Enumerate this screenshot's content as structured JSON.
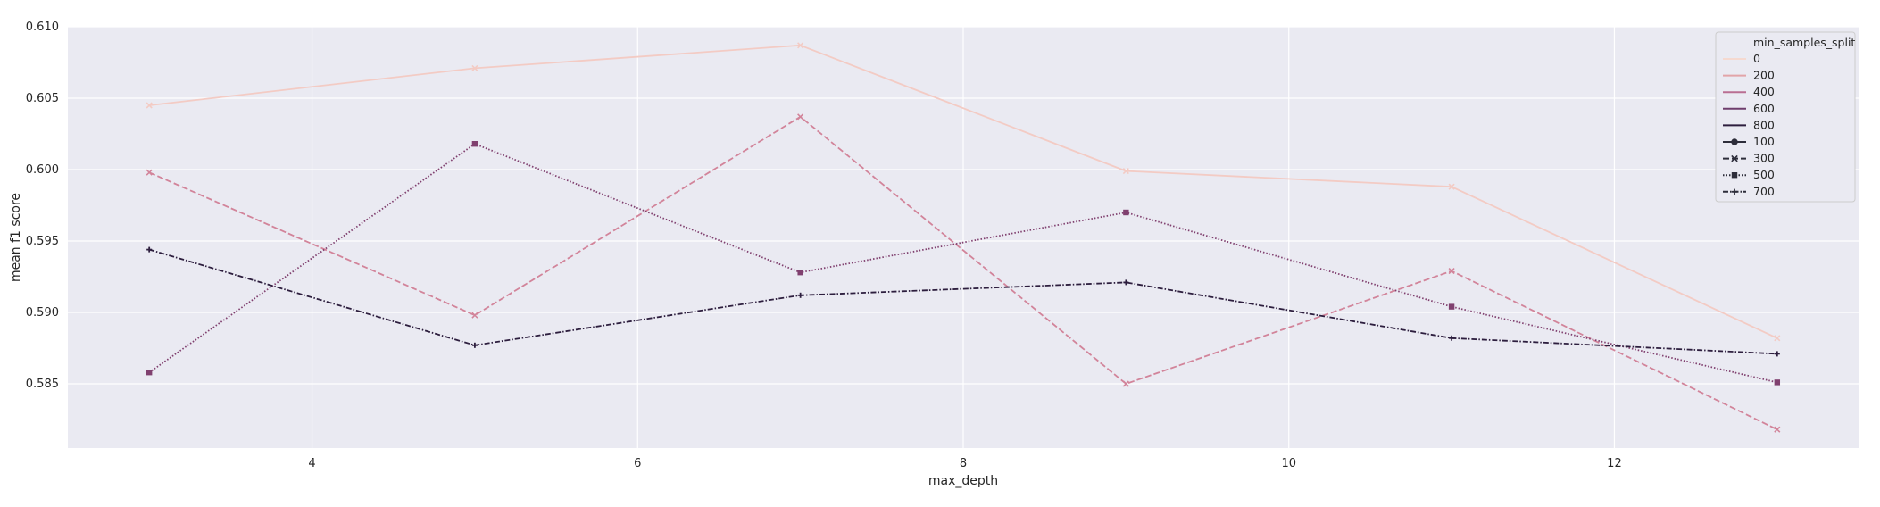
{
  "chart_data": {
    "type": "line",
    "xlabel": "max_depth",
    "ylabel": "mean f1 score",
    "xlim": [
      2.5,
      13.5
    ],
    "ylim": [
      0.5805,
      0.61
    ],
    "xticks": [
      4,
      6,
      8,
      10,
      12
    ],
    "yticks": [
      0.585,
      0.59,
      0.595,
      0.6,
      0.605,
      0.61
    ],
    "ytick_labels": [
      "0.585",
      "0.590",
      "0.595",
      "0.600",
      "0.605",
      "0.610"
    ],
    "grid": true,
    "x": [
      3,
      5,
      7,
      9,
      11,
      13
    ],
    "series": [
      {
        "name": "100",
        "hue": "200",
        "color": "#f3cbc4",
        "dash": "solid",
        "marker": "x",
        "values": [
          0.6045,
          0.6071,
          0.6087,
          0.5999,
          0.5988,
          0.5882
        ]
      },
      {
        "name": "300",
        "hue": "400",
        "color": "#d2849a",
        "dash": "dashed",
        "marker": "x",
        "values": [
          0.5998,
          0.5898,
          0.6037,
          0.585,
          0.5929,
          0.5818
        ]
      },
      {
        "name": "500",
        "hue": "600",
        "color": "#80406f",
        "dash": "dotted",
        "marker": "square",
        "values": [
          0.5858,
          0.6018,
          0.5928,
          0.597,
          0.5904,
          0.5851
        ]
      },
      {
        "name": "700",
        "hue": "800",
        "color": "#2d1e3e",
        "dash": "dashdot",
        "marker": "plus",
        "values": [
          0.5944,
          0.5877,
          0.5912,
          0.5921,
          0.5882,
          0.5871
        ]
      }
    ],
    "legend": {
      "placement": "top-right",
      "title": "min_samples_split",
      "hue_entries": [
        {
          "label": "0",
          "color": "#f5d9d0"
        },
        {
          "label": "200",
          "color": "#e2a4a8"
        },
        {
          "label": "400",
          "color": "#b96e92"
        },
        {
          "label": "600",
          "color": "#6e3d6c"
        },
        {
          "label": "800",
          "color": "#2d1e3e"
        }
      ],
      "style_entries": [
        {
          "label": "100",
          "dash": "solid",
          "marker": "circle"
        },
        {
          "label": "300",
          "dash": "dashed",
          "marker": "x"
        },
        {
          "label": "500",
          "dash": "dotted",
          "marker": "square"
        },
        {
          "label": "700",
          "dash": "dashdot",
          "marker": "plus"
        }
      ]
    },
    "colors": {
      "plot_background": "#eaeaf2",
      "grid": "#ffffff",
      "legend_background": "#eaeaf2",
      "legend_border": "#cccccc",
      "style_legend_color": "#2d2d3a"
    }
  }
}
